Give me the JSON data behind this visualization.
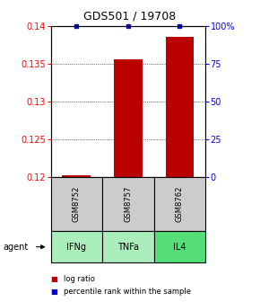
{
  "title": "GDS501 / 19708",
  "x_positions": [
    0,
    1,
    2
  ],
  "sample_labels": [
    "GSM8752",
    "GSM8757",
    "GSM8762"
  ],
  "agent_labels": [
    "IFNg",
    "TNFa",
    "IL4"
  ],
  "log_ratio_values": [
    0.1202,
    0.1355,
    0.1385
  ],
  "log_ratio_base": 0.12,
  "percentile_values": [
    100,
    100,
    100
  ],
  "ylim_left": [
    0.12,
    0.14
  ],
  "ylim_right": [
    0,
    100
  ],
  "yticks_left": [
    0.12,
    0.125,
    0.13,
    0.135,
    0.14
  ],
  "ytick_labels_left": [
    "0.12",
    "0.125",
    "0.13",
    "0.135",
    "0.14"
  ],
  "yticks_right": [
    0,
    25,
    50,
    75,
    100
  ],
  "ytick_labels_right": [
    "0",
    "25",
    "50",
    "75",
    "100%"
  ],
  "bar_color": "#bb0000",
  "dot_color": "#0000cc",
  "gray_box_color": "#cccccc",
  "green_box_colors": [
    "#aaeebb",
    "#aaeebb",
    "#55dd77"
  ],
  "legend_label_red": "log ratio",
  "legend_label_blue": "percentile rank within the sample",
  "bar_width": 0.55,
  "title_fontsize": 9,
  "tick_fontsize": 7,
  "label_fontsize": 7
}
